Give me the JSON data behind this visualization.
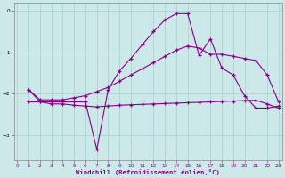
{
  "bg_color": "#cce8e8",
  "grid_color": "#aad4d4",
  "line_color": "#880088",
  "xlim": [
    -0.3,
    23.3
  ],
  "ylim": [
    -3.6,
    0.2
  ],
  "xticks": [
    0,
    1,
    2,
    3,
    4,
    5,
    6,
    7,
    8,
    9,
    10,
    11,
    12,
    13,
    14,
    15,
    16,
    17,
    18,
    19,
    20,
    21,
    22,
    23
  ],
  "yticks": [
    0,
    -1,
    -2,
    -3
  ],
  "xlabel": "Windchill (Refroidissement éolien,°C)",
  "line1_x": [
    1,
    2,
    3,
    4,
    5,
    6,
    7,
    8,
    9,
    10,
    11,
    12,
    13,
    14,
    15,
    16,
    17,
    18,
    19,
    20,
    21,
    22,
    23
  ],
  "line1_y": [
    -1.9,
    -2.15,
    -2.15,
    -2.15,
    -2.1,
    -2.05,
    -1.95,
    -1.85,
    -1.7,
    -1.55,
    -1.4,
    -1.25,
    -1.1,
    -0.95,
    -0.85,
    -0.9,
    -1.05,
    -1.05,
    -1.1,
    -1.15,
    -1.2,
    -1.55,
    -2.2
  ],
  "line2_x": [
    1,
    2,
    3,
    4,
    5,
    6,
    7,
    8,
    9,
    10,
    11,
    12,
    13,
    14,
    15,
    16,
    17,
    18,
    19,
    20,
    21,
    22,
    23
  ],
  "line2_y": [
    -2.2,
    -2.2,
    -2.2,
    -2.2,
    -2.2,
    -2.2,
    -3.35,
    -1.9,
    -1.45,
    -1.15,
    -0.82,
    -0.5,
    -0.22,
    -0.07,
    -0.07,
    -1.08,
    -0.68,
    -1.38,
    -1.55,
    -2.05,
    -2.35,
    -2.35,
    -2.3
  ],
  "line3_x": [
    1,
    2,
    3,
    4,
    5,
    6,
    7,
    8,
    9,
    10,
    11,
    12,
    13,
    14,
    15,
    16,
    17,
    18,
    19,
    20,
    21,
    22,
    23
  ],
  "line3_y": [
    -1.9,
    -2.2,
    -2.25,
    -2.25,
    -2.28,
    -2.3,
    -2.32,
    -2.3,
    -2.28,
    -2.27,
    -2.26,
    -2.25,
    -2.24,
    -2.23,
    -2.22,
    -2.21,
    -2.2,
    -2.19,
    -2.18,
    -2.17,
    -2.16,
    -2.25,
    -2.35
  ]
}
